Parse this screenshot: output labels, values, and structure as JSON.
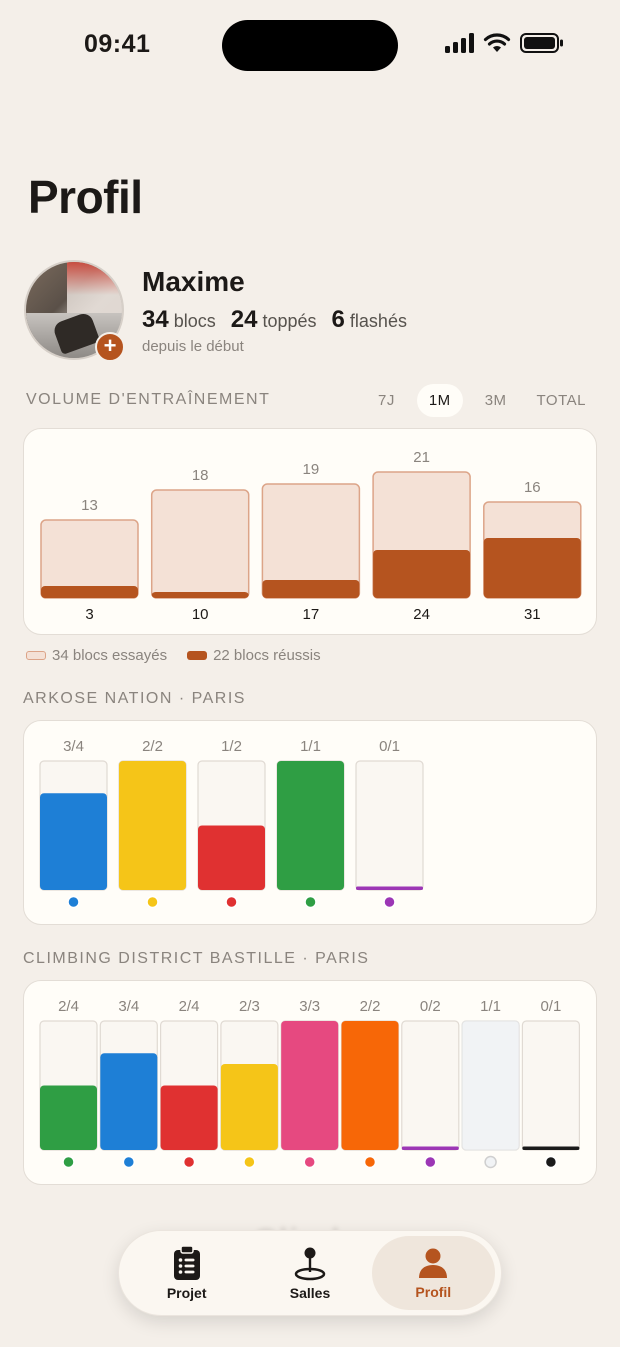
{
  "status": {
    "time": "09:41"
  },
  "page_title": "Profil",
  "user": {
    "name": "Maxime",
    "blocs": "34",
    "blocs_label": "blocs",
    "toppes": "24",
    "toppes_label": "toppés",
    "flashes": "6",
    "flashes_label": "flashés",
    "since": "depuis le début"
  },
  "volume": {
    "label": "VOLUME D'ENTRAÎNEMENT",
    "periods": [
      "7J",
      "1M",
      "3M",
      "TOTAL"
    ],
    "active_period": "1M",
    "chart_data": {
      "type": "bar",
      "categories": [
        "3",
        "10",
        "17",
        "24",
        "31"
      ],
      "series": [
        {
          "name": "blocs essayés",
          "values": [
            13,
            18,
            19,
            21,
            16
          ]
        },
        {
          "name": "blocs réussis",
          "values": [
            2,
            1,
            3,
            8,
            10
          ]
        }
      ]
    },
    "legend": {
      "tried": "34 blocs essayés",
      "success": "22 blocs réussis"
    }
  },
  "gyms": [
    {
      "label": "ARKOSE NATION · PARIS",
      "chart_data": {
        "type": "bar",
        "bars": [
          {
            "text": "3/4",
            "done": 3,
            "total": 4,
            "color": "#1e7fd6"
          },
          {
            "text": "2/2",
            "done": 2,
            "total": 2,
            "color": "#f5c518"
          },
          {
            "text": "1/2",
            "done": 1,
            "total": 2,
            "color": "#e03131"
          },
          {
            "text": "1/1",
            "done": 1,
            "total": 1,
            "color": "#2f9e44"
          },
          {
            "text": "0/1",
            "done": 0,
            "total": 1,
            "color": "#9c36b5"
          }
        ]
      }
    },
    {
      "label": "CLIMBING DISTRICT BASTILLE · PARIS",
      "chart_data": {
        "type": "bar",
        "bars": [
          {
            "text": "2/4",
            "done": 2,
            "total": 4,
            "color": "#2f9e44"
          },
          {
            "text": "3/4",
            "done": 3,
            "total": 4,
            "color": "#1e7fd6"
          },
          {
            "text": "2/4",
            "done": 2,
            "total": 4,
            "color": "#e03131"
          },
          {
            "text": "2/3",
            "done": 2,
            "total": 3,
            "color": "#f5c518"
          },
          {
            "text": "3/3",
            "done": 3,
            "total": 3,
            "color": "#e64980"
          },
          {
            "text": "2/2",
            "done": 2,
            "total": 2,
            "color": "#f76707"
          },
          {
            "text": "0/2",
            "done": 0,
            "total": 2,
            "color": "#9c36b5"
          },
          {
            "text": "1/1",
            "done": 1,
            "total": 1,
            "color": "#f1f3f5"
          },
          {
            "text": "0/1",
            "done": 0,
            "total": 1,
            "color": "#1a1a1a"
          }
        ]
      }
    }
  ],
  "tabs": [
    {
      "label": "Projet",
      "icon": "clipboard-icon"
    },
    {
      "label": "Salles",
      "icon": "map-pin-icon"
    },
    {
      "label": "Profil",
      "icon": "person-icon"
    }
  ],
  "active_tab": "Profil",
  "colors": {
    "accent": "#b5541f",
    "tried_fill": "#f4e1d6",
    "tried_border": "#dca488"
  }
}
